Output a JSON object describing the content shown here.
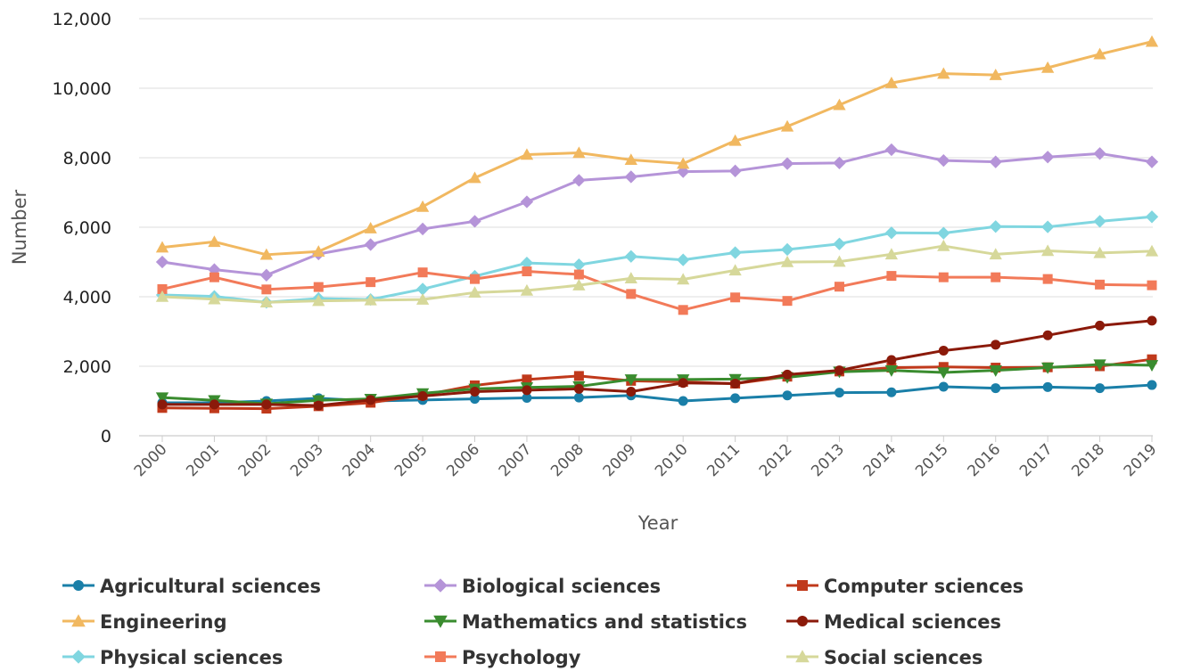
{
  "chart_data": {
    "type": "line",
    "title": "",
    "xlabel": "Year",
    "ylabel": "Number",
    "ylim": [
      0,
      12000
    ],
    "yticks": [
      0,
      2000,
      4000,
      6000,
      8000,
      10000,
      12000
    ],
    "ytick_labels": [
      "0",
      "2,000",
      "4,000",
      "6,000",
      "8,000",
      "10,000",
      "12,000"
    ],
    "grid": true,
    "legend_position": "bottom",
    "x": [
      "2000",
      "2001",
      "2002",
      "2003",
      "2004",
      "2005",
      "2006",
      "2007",
      "2008",
      "2009",
      "2010",
      "2011",
      "2012",
      "2013",
      "2014",
      "2015",
      "2016",
      "2017",
      "2018",
      "2019"
    ],
    "series": [
      {
        "name": "Agricultural sciences",
        "color": "#1a7fa8",
        "marker": "circle",
        "values": [
          950,
          950,
          1000,
          1080,
          1000,
          1030,
          1060,
          1090,
          1100,
          1160,
          1000,
          1080,
          1160,
          1240,
          1250,
          1410,
          1370,
          1400,
          1370,
          1460
        ]
      },
      {
        "name": "Biological sciences",
        "color": "#b594d8",
        "marker": "diamond",
        "values": [
          5000,
          4780,
          4620,
          5230,
          5500,
          5950,
          6170,
          6730,
          7350,
          7450,
          7600,
          7620,
          7830,
          7850,
          8230,
          7920,
          7880,
          8020,
          8120,
          7880
        ]
      },
      {
        "name": "Computer sciences",
        "color": "#c0391b",
        "marker": "square",
        "values": [
          800,
          790,
          780,
          850,
          950,
          1170,
          1450,
          1620,
          1720,
          1580,
          1550,
          1500,
          1700,
          1850,
          1960,
          1980,
          1960,
          1970,
          2000,
          2200
        ]
      },
      {
        "name": "Engineering",
        "color": "#f1b860",
        "marker": "triangle-up",
        "values": [
          5420,
          5580,
          5210,
          5300,
          5970,
          6590,
          7420,
          8090,
          8140,
          7940,
          7830,
          8490,
          8900,
          9520,
          10150,
          10420,
          10380,
          10590,
          10980,
          11340
        ]
      },
      {
        "name": "Mathematics and statistics",
        "color": "#3a8c2f",
        "marker": "triangle-down",
        "values": [
          1100,
          1020,
          920,
          1020,
          1060,
          1220,
          1350,
          1390,
          1420,
          1620,
          1620,
          1630,
          1680,
          1840,
          1880,
          1820,
          1880,
          1960,
          2050,
          2030
        ]
      },
      {
        "name": "Medical sciences",
        "color": "#8b1a0a",
        "marker": "circle",
        "values": [
          900,
          900,
          900,
          870,
          1030,
          1140,
          1270,
          1310,
          1350,
          1270,
          1520,
          1500,
          1760,
          1880,
          2180,
          2450,
          2620,
          2890,
          3170,
          3310
        ]
      },
      {
        "name": "Physical sciences",
        "color": "#80d6e0",
        "marker": "diamond",
        "values": [
          4050,
          4010,
          3840,
          3950,
          3920,
          4220,
          4590,
          4970,
          4920,
          5160,
          5060,
          5270,
          5360,
          5520,
          5840,
          5830,
          6020,
          6010,
          6170,
          6300
        ]
      },
      {
        "name": "Psychology",
        "color": "#f27a59",
        "marker": "square",
        "values": [
          4220,
          4560,
          4210,
          4280,
          4420,
          4700,
          4510,
          4730,
          4640,
          4080,
          3620,
          3980,
          3880,
          4290,
          4600,
          4560,
          4560,
          4510,
          4350,
          4330
        ]
      },
      {
        "name": "Social sciences",
        "color": "#d6d89a",
        "marker": "triangle-up",
        "values": [
          4000,
          3930,
          3840,
          3880,
          3900,
          3920,
          4120,
          4180,
          4330,
          4530,
          4500,
          4760,
          5000,
          5010,
          5220,
          5460,
          5220,
          5320,
          5260,
          5310
        ]
      }
    ]
  }
}
